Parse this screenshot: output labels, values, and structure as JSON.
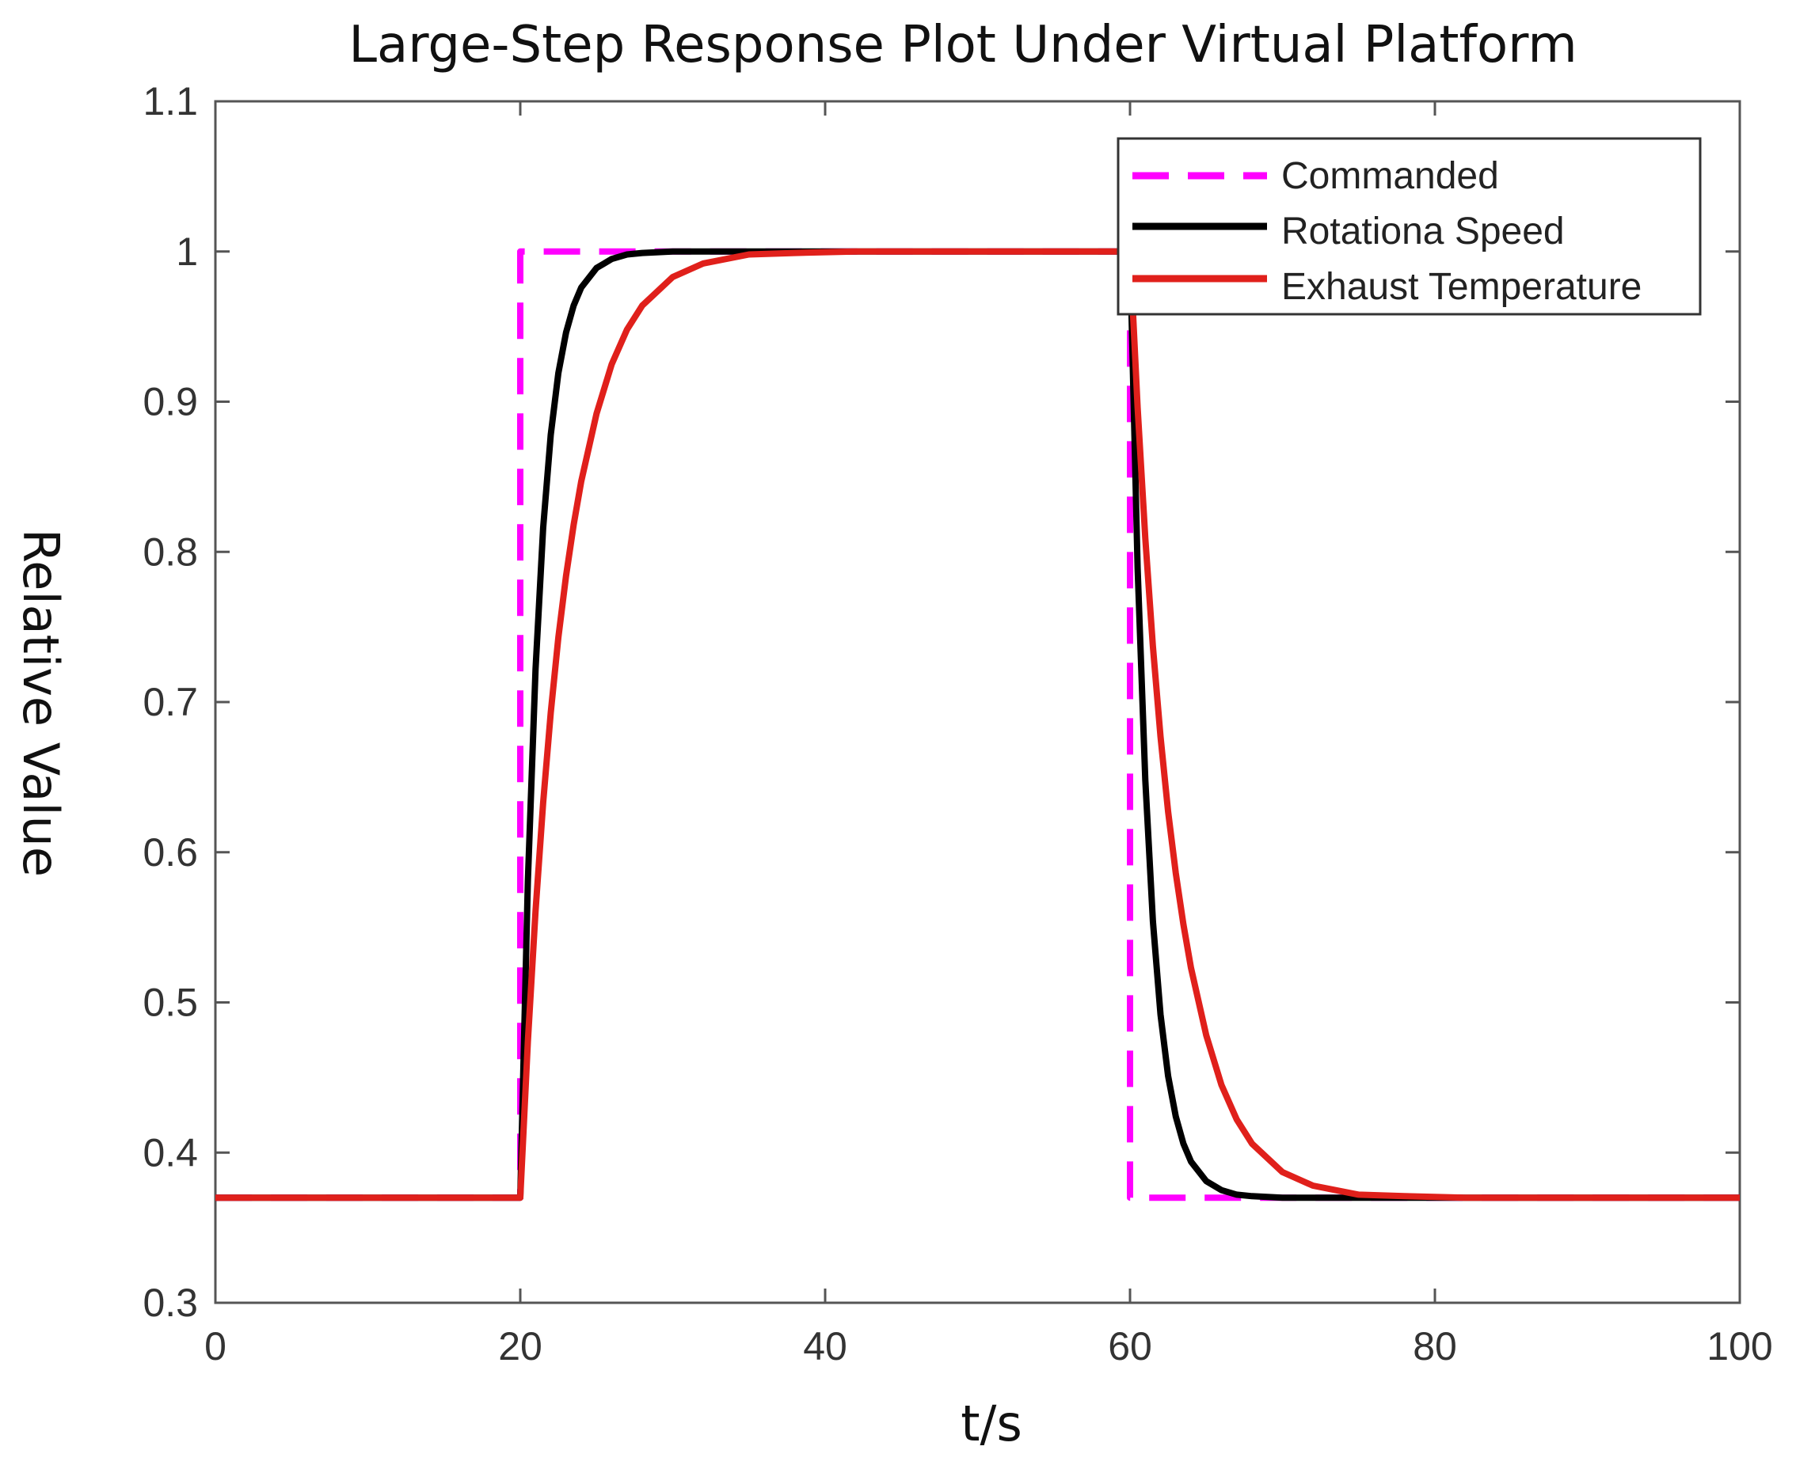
{
  "chart_data": {
    "type": "line",
    "title": "Large-Step Response Plot Under Virtual Platform",
    "xlabel": "t/s",
    "ylabel": "Relative Value",
    "xlim": [
      0,
      100
    ],
    "ylim": [
      0.3,
      1.1
    ],
    "xticks": [
      0,
      20,
      40,
      60,
      80,
      100
    ],
    "yticks": [
      0.3,
      0.4,
      0.5,
      0.6,
      0.7,
      0.8,
      0.9,
      1,
      1.1
    ],
    "ytick_labels": [
      "0.3",
      "0.4",
      "0.5",
      "0.6",
      "0.7",
      "0.8",
      "0.9",
      "1",
      "1.1"
    ],
    "grid": false,
    "legend_position": "top-right",
    "series": [
      {
        "name": "Commanded",
        "color": "#ff00ff",
        "style": "dashed",
        "x": [
          0,
          20,
          20,
          60,
          60,
          100
        ],
        "y": [
          0.37,
          0.37,
          1.0,
          1.0,
          0.37,
          0.37
        ]
      },
      {
        "name": "Rotationa Speed",
        "color": "#000000",
        "style": "solid",
        "x": [
          0,
          20,
          20.5,
          21,
          21.5,
          22,
          22.5,
          23,
          23.5,
          24,
          25,
          26,
          27,
          28,
          30,
          33,
          36,
          40,
          50,
          60,
          60.5,
          61,
          61.5,
          62,
          62.5,
          63,
          63.5,
          64,
          65,
          66,
          67,
          68,
          70,
          73,
          76,
          80,
          90,
          100
        ],
        "y": [
          0.37,
          0.37,
          0.581,
          0.722,
          0.816,
          0.878,
          0.919,
          0.946,
          0.964,
          0.976,
          0.989,
          0.995,
          0.998,
          0.999,
          1.0,
          1.0,
          1.0,
          1.0,
          1.0,
          1.0,
          0.789,
          0.648,
          0.554,
          0.492,
          0.451,
          0.424,
          0.406,
          0.394,
          0.381,
          0.375,
          0.372,
          0.371,
          0.37,
          0.37,
          0.37,
          0.37,
          0.37,
          0.37
        ]
      },
      {
        "name": "Exhaust Temperature",
        "color": "#e0201b",
        "style": "solid",
        "x": [
          0,
          20,
          20.5,
          21,
          21.5,
          22,
          22.5,
          23,
          23.5,
          24,
          25,
          26,
          27,
          28,
          30,
          32,
          35,
          38,
          42,
          50,
          60,
          60.5,
          61,
          61.5,
          62,
          62.5,
          63,
          63.5,
          64,
          65,
          66,
          67,
          68,
          70,
          72,
          75,
          78,
          82,
          90,
          100
        ],
        "y": [
          0.37,
          0.37,
          0.474,
          0.561,
          0.633,
          0.693,
          0.743,
          0.784,
          0.818,
          0.847,
          0.892,
          0.925,
          0.948,
          0.964,
          0.983,
          0.992,
          0.998,
          0.999,
          1.0,
          1.0,
          1.0,
          0.896,
          0.809,
          0.737,
          0.677,
          0.627,
          0.586,
          0.552,
          0.523,
          0.478,
          0.445,
          0.422,
          0.406,
          0.387,
          0.378,
          0.372,
          0.371,
          0.37,
          0.37,
          0.37
        ]
      }
    ]
  }
}
